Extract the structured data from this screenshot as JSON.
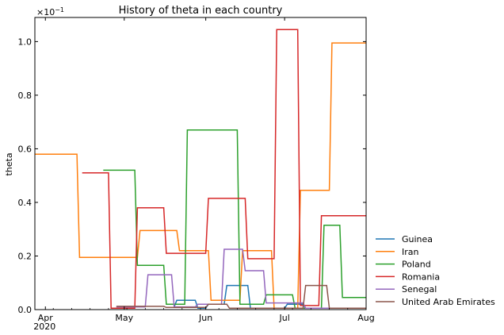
{
  "chart_data": {
    "type": "line",
    "title": "History of theta in each country",
    "xlabel": "",
    "ylabel": "theta",
    "y_multiplier_label": "×10",
    "y_multiplier_exp": "−1",
    "x_axis": {
      "type": "date",
      "range": [
        "2020-03-28",
        "2020-08-01"
      ],
      "ticks": [
        {
          "date": "2020-04-01",
          "label": "Apr",
          "sublabel": "2020"
        },
        {
          "date": "2020-05-01",
          "label": "May",
          "sublabel": ""
        },
        {
          "date": "2020-06-01",
          "label": "Jun",
          "sublabel": ""
        },
        {
          "date": "2020-07-01",
          "label": "Jul",
          "sublabel": ""
        },
        {
          "date": "2020-08-01",
          "label": "Aug",
          "sublabel": ""
        }
      ]
    },
    "y_axis": {
      "range": [
        0,
        1.09
      ],
      "ticks": [
        {
          "value": 0.0,
          "label": "0.0"
        },
        {
          "value": 0.2,
          "label": "0.2"
        },
        {
          "value": 0.4,
          "label": "0.4"
        },
        {
          "value": 0.6,
          "label": "0.6"
        },
        {
          "value": 0.8,
          "label": "0.8"
        },
        {
          "value": 1.0,
          "label": "1.0"
        }
      ]
    },
    "grid": false,
    "legend_position": "outside-right-bottom",
    "series": [
      {
        "name": "Guinea",
        "color": "#1f77b4",
        "points": [
          [
            "2020-05-20",
            0.01
          ],
          [
            "2020-05-21",
            0.035
          ],
          [
            "2020-05-28",
            0.035
          ],
          [
            "2020-05-29",
            0.005
          ],
          [
            "2020-06-01",
            0.005
          ],
          [
            "2020-06-02",
            0.02
          ],
          [
            "2020-06-08",
            0.02
          ],
          [
            "2020-06-09",
            0.09
          ],
          [
            "2020-06-17",
            0.09
          ],
          [
            "2020-06-18",
            0.005
          ],
          [
            "2020-07-01",
            0.005
          ],
          [
            "2020-07-02",
            0.02
          ],
          [
            "2020-07-08",
            0.02
          ],
          [
            "2020-07-09",
            0.005
          ],
          [
            "2020-08-01",
            0.005
          ]
        ]
      },
      {
        "name": "Iran",
        "color": "#ff7f0e",
        "points": [
          [
            "2020-03-28",
            0.58
          ],
          [
            "2020-04-13",
            0.58
          ],
          [
            "2020-04-14",
            0.195
          ],
          [
            "2020-05-06",
            0.195
          ],
          [
            "2020-05-07",
            0.295
          ],
          [
            "2020-05-21",
            0.295
          ],
          [
            "2020-05-22",
            0.22
          ],
          [
            "2020-06-02",
            0.22
          ],
          [
            "2020-06-03",
            0.035
          ],
          [
            "2020-06-14",
            0.035
          ],
          [
            "2020-06-15",
            0.22
          ],
          [
            "2020-06-26",
            0.22
          ],
          [
            "2020-06-27",
            0.005
          ],
          [
            "2020-07-06",
            0.005
          ],
          [
            "2020-07-07",
            0.445
          ],
          [
            "2020-07-18",
            0.445
          ],
          [
            "2020-07-19",
            0.995
          ],
          [
            "2020-08-01",
            0.995
          ]
        ]
      },
      {
        "name": "Poland",
        "color": "#2ca02c",
        "points": [
          [
            "2020-04-23",
            0.52
          ],
          [
            "2020-05-05",
            0.52
          ],
          [
            "2020-05-06",
            0.165
          ],
          [
            "2020-05-16",
            0.165
          ],
          [
            "2020-05-17",
            0.02
          ],
          [
            "2020-05-24",
            0.02
          ],
          [
            "2020-05-25",
            0.67
          ],
          [
            "2020-06-13",
            0.67
          ],
          [
            "2020-06-14",
            0.02
          ],
          [
            "2020-06-23",
            0.02
          ],
          [
            "2020-06-24",
            0.055
          ],
          [
            "2020-07-04",
            0.055
          ],
          [
            "2020-07-05",
            0.005
          ],
          [
            "2020-07-15",
            0.005
          ],
          [
            "2020-07-16",
            0.315
          ],
          [
            "2020-07-22",
            0.315
          ],
          [
            "2020-07-23",
            0.045
          ],
          [
            "2020-08-01",
            0.045
          ]
        ]
      },
      {
        "name": "Romania",
        "color": "#d62728",
        "points": [
          [
            "2020-04-15",
            0.51
          ],
          [
            "2020-04-25",
            0.51
          ],
          [
            "2020-04-26",
            0.005
          ],
          [
            "2020-05-05",
            0.005
          ],
          [
            "2020-05-06",
            0.38
          ],
          [
            "2020-05-16",
            0.38
          ],
          [
            "2020-05-17",
            0.21
          ],
          [
            "2020-06-01",
            0.21
          ],
          [
            "2020-06-02",
            0.415
          ],
          [
            "2020-06-16",
            0.415
          ],
          [
            "2020-06-17",
            0.19
          ],
          [
            "2020-06-27",
            0.19
          ],
          [
            "2020-06-28",
            1.045
          ],
          [
            "2020-07-06",
            1.045
          ],
          [
            "2020-07-07",
            0.015
          ],
          [
            "2020-07-14",
            0.015
          ],
          [
            "2020-07-15",
            0.35
          ],
          [
            "2020-08-01",
            0.35
          ]
        ]
      },
      {
        "name": "Senegal",
        "color": "#9467bd",
        "points": [
          [
            "2020-04-28",
            0.01
          ],
          [
            "2020-05-09",
            0.01
          ],
          [
            "2020-05-10",
            0.13
          ],
          [
            "2020-05-19",
            0.13
          ],
          [
            "2020-05-20",
            0.01
          ],
          [
            "2020-05-28",
            0.01
          ],
          [
            "2020-05-29",
            0.02
          ],
          [
            "2020-06-07",
            0.02
          ],
          [
            "2020-06-08",
            0.225
          ],
          [
            "2020-06-15",
            0.225
          ],
          [
            "2020-06-16",
            0.145
          ],
          [
            "2020-06-23",
            0.145
          ],
          [
            "2020-06-24",
            0.025
          ],
          [
            "2020-07-08",
            0.025
          ],
          [
            "2020-07-09",
            0.005
          ],
          [
            "2020-08-01",
            0.005
          ]
        ]
      },
      {
        "name": "United Arab Emirates",
        "color": "#8c564b",
        "points": [
          [
            "2020-04-28",
            0.012
          ],
          [
            "2020-05-16",
            0.012
          ],
          [
            "2020-05-17",
            0.008
          ],
          [
            "2020-06-01",
            0.008
          ],
          [
            "2020-06-02",
            0.02
          ],
          [
            "2020-06-09",
            0.02
          ],
          [
            "2020-06-10",
            0.005
          ],
          [
            "2020-07-08",
            0.005
          ],
          [
            "2020-07-09",
            0.09
          ],
          [
            "2020-07-17",
            0.09
          ],
          [
            "2020-07-18",
            0.005
          ],
          [
            "2020-08-01",
            0.005
          ]
        ]
      }
    ]
  }
}
